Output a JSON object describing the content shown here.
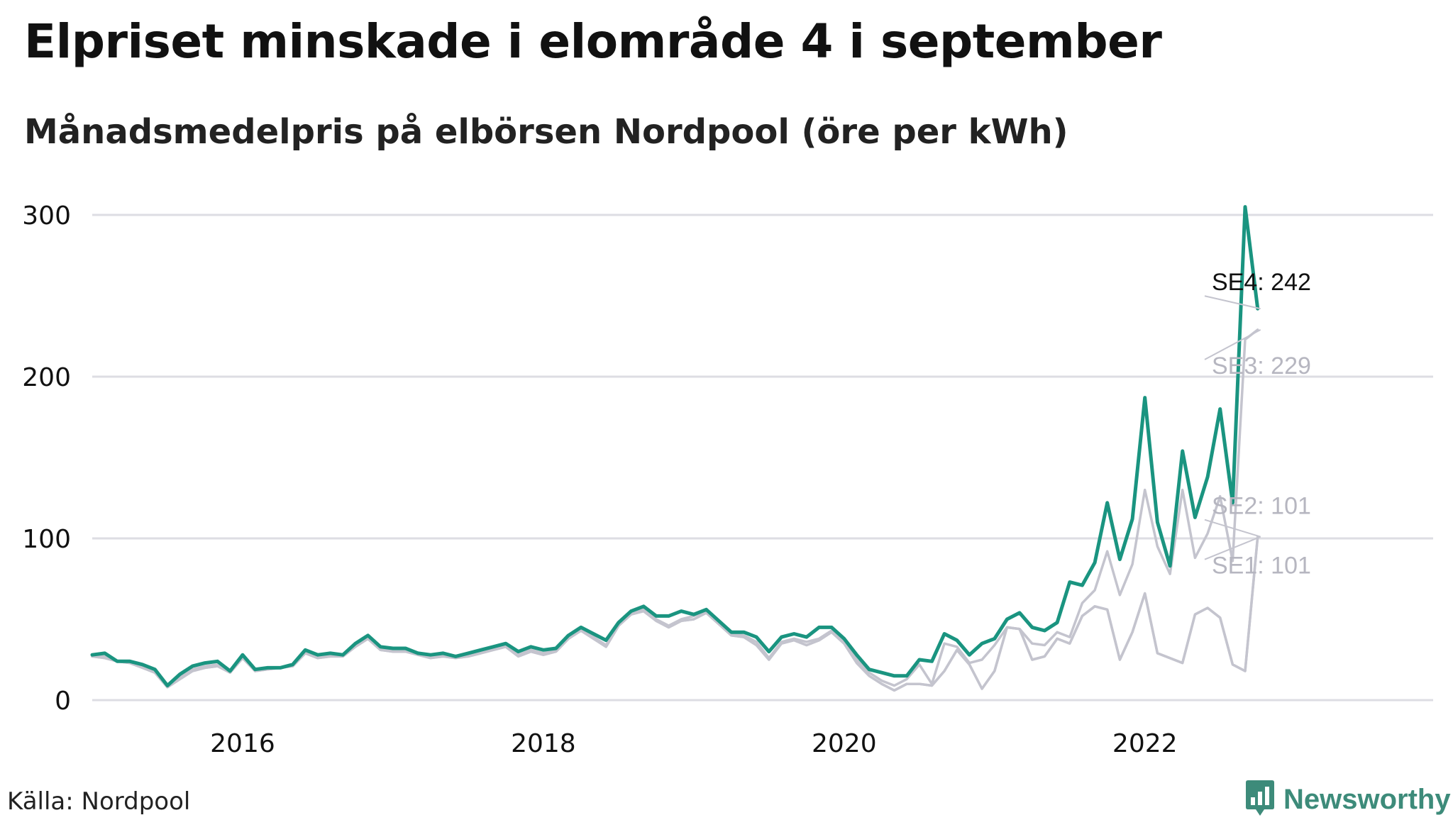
{
  "title": "Elpriset minskade i elområde 4 i september",
  "subtitle": "Månadsmedelpris på elbörsen Nordpool (öre per kWh)",
  "source": "Källa: Nordpool",
  "brand": {
    "name": "Newsworthy",
    "icon": "newsworthy-logo-icon",
    "color": "#3d8b7a"
  },
  "colors": {
    "highlight": "#1a9480",
    "muted": "#c4c4ce",
    "grid": "#dddde3",
    "axis_text": "#111111",
    "label_dark": "#111111",
    "label_muted": "#b6b6c0"
  },
  "chart_data": {
    "type": "line",
    "ylim": [
      0,
      300
    ],
    "yticks": [
      0,
      100,
      200,
      300
    ],
    "xticks": [
      2016,
      2018,
      2020,
      2022
    ],
    "xlim": [
      "2015-01",
      "2023-12"
    ],
    "grid": true,
    "x_start": "2015-01",
    "x_end": "2022-09",
    "series": [
      {
        "name": "SE4",
        "end_label": "SE4: 242",
        "highlight": true,
        "values": [
          28,
          29,
          24,
          24,
          22,
          19,
          9,
          16,
          21,
          23,
          24,
          18,
          28,
          19,
          20,
          20,
          22,
          31,
          28,
          29,
          28,
          35,
          40,
          33,
          32,
          32,
          29,
          28,
          29,
          27,
          29,
          31,
          33,
          35,
          30,
          33,
          31,
          32,
          40,
          45,
          41,
          37,
          48,
          55,
          58,
          52,
          52,
          55,
          53,
          56,
          49,
          42,
          42,
          39,
          30,
          39,
          41,
          39,
          45,
          45,
          38,
          28,
          19,
          17,
          15,
          15,
          25,
          24,
          41,
          37,
          28,
          35,
          38,
          50,
          54,
          45,
          43,
          48,
          73,
          71,
          85,
          122,
          87,
          112,
          187,
          110,
          83,
          154,
          113,
          138,
          180,
          122,
          305,
          242
        ]
      },
      {
        "name": "SE3",
        "end_label": "SE3: 229",
        "highlight": false,
        "values": [
          27,
          27,
          24,
          24,
          21,
          18,
          8,
          14,
          19,
          21,
          22,
          17,
          27,
          18,
          20,
          20,
          22,
          30,
          27,
          28,
          28,
          34,
          39,
          32,
          31,
          31,
          29,
          27,
          28,
          27,
          28,
          30,
          32,
          34,
          28,
          31,
          29,
          31,
          39,
          44,
          39,
          34,
          47,
          54,
          56,
          50,
          46,
          50,
          52,
          55,
          48,
          41,
          40,
          36,
          26,
          36,
          38,
          36,
          38,
          43,
          36,
          25,
          17,
          12,
          9,
          13,
          22,
          10,
          35,
          33,
          23,
          25,
          34,
          45,
          44,
          35,
          34,
          42,
          39,
          60,
          68,
          92,
          65,
          84,
          130,
          95,
          78,
          130,
          88,
          103,
          126,
          86,
          223,
          229
        ]
      },
      {
        "name": "SE2",
        "end_label": "SE2: 101",
        "highlight": false,
        "values": [
          27,
          26,
          24,
          23,
          20,
          17,
          8,
          13,
          18,
          20,
          21,
          17,
          26,
          18,
          19,
          20,
          21,
          29,
          26,
          27,
          27,
          33,
          38,
          31,
          30,
          30,
          28,
          26,
          27,
          26,
          27,
          29,
          31,
          33,
          27,
          30,
          28,
          30,
          38,
          43,
          38,
          33,
          46,
          53,
          55,
          49,
          45,
          49,
          50,
          54,
          47,
          40,
          39,
          34,
          25,
          35,
          37,
          34,
          37,
          42,
          35,
          23,
          15,
          10,
          6,
          10,
          10,
          9,
          18,
          31,
          22,
          7,
          18,
          45,
          44,
          25,
          27,
          38,
          35,
          52,
          58,
          56,
          25,
          42,
          66,
          29,
          26,
          23,
          53,
          57,
          51,
          22,
          18,
          101
        ]
      },
      {
        "name": "SE1",
        "end_label": "SE1: 101",
        "highlight": false,
        "values": [
          27,
          26,
          24,
          23,
          20,
          17,
          8,
          13,
          18,
          20,
          21,
          17,
          26,
          18,
          19,
          20,
          21,
          29,
          26,
          27,
          27,
          33,
          38,
          31,
          30,
          30,
          28,
          26,
          27,
          26,
          27,
          29,
          31,
          33,
          27,
          30,
          28,
          30,
          38,
          43,
          38,
          33,
          46,
          53,
          55,
          49,
          45,
          49,
          50,
          54,
          47,
          40,
          39,
          34,
          25,
          35,
          37,
          34,
          37,
          42,
          35,
          23,
          15,
          10,
          6,
          10,
          10,
          9,
          18,
          31,
          22,
          7,
          18,
          45,
          44,
          25,
          27,
          38,
          35,
          52,
          58,
          56,
          25,
          42,
          66,
          29,
          26,
          23,
          53,
          57,
          51,
          22,
          18,
          101
        ]
      }
    ]
  }
}
